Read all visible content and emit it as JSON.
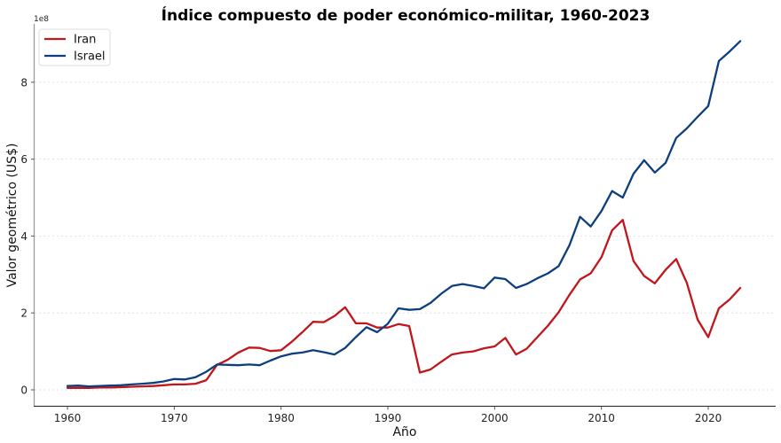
{
  "chart_data": {
    "type": "line",
    "title": "Índice compuesto de poder económico-militar, 1960-2023",
    "xlabel": "Año",
    "ylabel": "Valor geométrico (US$)",
    "y_offset_label": "1e8",
    "xlim": [
      1957,
      2026
    ],
    "ylim": [
      -0.4,
      9.5
    ],
    "x_ticks": [
      1960,
      1970,
      1980,
      1990,
      2000,
      2010,
      2020
    ],
    "x_tick_labels": [
      "1960",
      "1970",
      "1980",
      "1990",
      "2000",
      "2010",
      "2020"
    ],
    "y_ticks": [
      0,
      2,
      4,
      6,
      8
    ],
    "y_tick_labels": [
      "0",
      "2",
      "4",
      "6",
      "8"
    ],
    "grid": "y-dotted",
    "legend_position": "top-left",
    "x": [
      1960,
      1961,
      1962,
      1963,
      1964,
      1965,
      1966,
      1967,
      1968,
      1969,
      1970,
      1971,
      1972,
      1973,
      1974,
      1975,
      1976,
      1977,
      1978,
      1979,
      1980,
      1981,
      1982,
      1983,
      1984,
      1985,
      1986,
      1987,
      1988,
      1989,
      1990,
      1991,
      1992,
      1993,
      1994,
      1995,
      1996,
      1997,
      1998,
      1999,
      2000,
      2001,
      2002,
      2003,
      2004,
      2005,
      2006,
      2007,
      2008,
      2009,
      2010,
      2011,
      2012,
      2013,
      2014,
      2015,
      2016,
      2017,
      2018,
      2019,
      2020,
      2021,
      2022,
      2023
    ],
    "series": [
      {
        "name": "Iran",
        "color": "#c0161c",
        "values": [
          0.05,
          0.05,
          0.05,
          0.06,
          0.06,
          0.07,
          0.08,
          0.09,
          0.1,
          0.12,
          0.14,
          0.14,
          0.16,
          0.25,
          0.65,
          0.78,
          0.97,
          1.1,
          1.09,
          1.01,
          1.03,
          1.25,
          1.5,
          1.77,
          1.76,
          1.92,
          2.15,
          1.73,
          1.73,
          1.62,
          1.62,
          1.71,
          1.66,
          0.45,
          0.53,
          0.73,
          0.92,
          0.97,
          1.0,
          1.08,
          1.13,
          1.35,
          0.92,
          1.07,
          1.37,
          1.67,
          2.02,
          2.47,
          2.87,
          3.03,
          3.45,
          4.15,
          4.42,
          3.35,
          2.96,
          2.77,
          3.12,
          3.4,
          2.78,
          1.83,
          1.37,
          2.12,
          2.35,
          2.65
        ]
      },
      {
        "name": "Israel",
        "color": "#0d3f7f",
        "values": [
          0.1,
          0.11,
          0.09,
          0.1,
          0.11,
          0.12,
          0.14,
          0.16,
          0.18,
          0.22,
          0.28,
          0.27,
          0.33,
          0.47,
          0.66,
          0.65,
          0.64,
          0.66,
          0.64,
          0.76,
          0.87,
          0.94,
          0.97,
          1.03,
          0.98,
          0.92,
          1.09,
          1.37,
          1.63,
          1.5,
          1.72,
          2.12,
          2.08,
          2.1,
          2.26,
          2.5,
          2.7,
          2.75,
          2.7,
          2.64,
          2.92,
          2.88,
          2.65,
          2.75,
          2.9,
          3.03,
          3.22,
          3.76,
          4.5,
          4.25,
          4.65,
          5.17,
          5.0,
          5.62,
          5.97,
          5.65,
          5.9,
          6.55,
          6.8,
          7.1,
          7.38,
          8.55,
          8.8,
          9.07
        ]
      }
    ]
  }
}
